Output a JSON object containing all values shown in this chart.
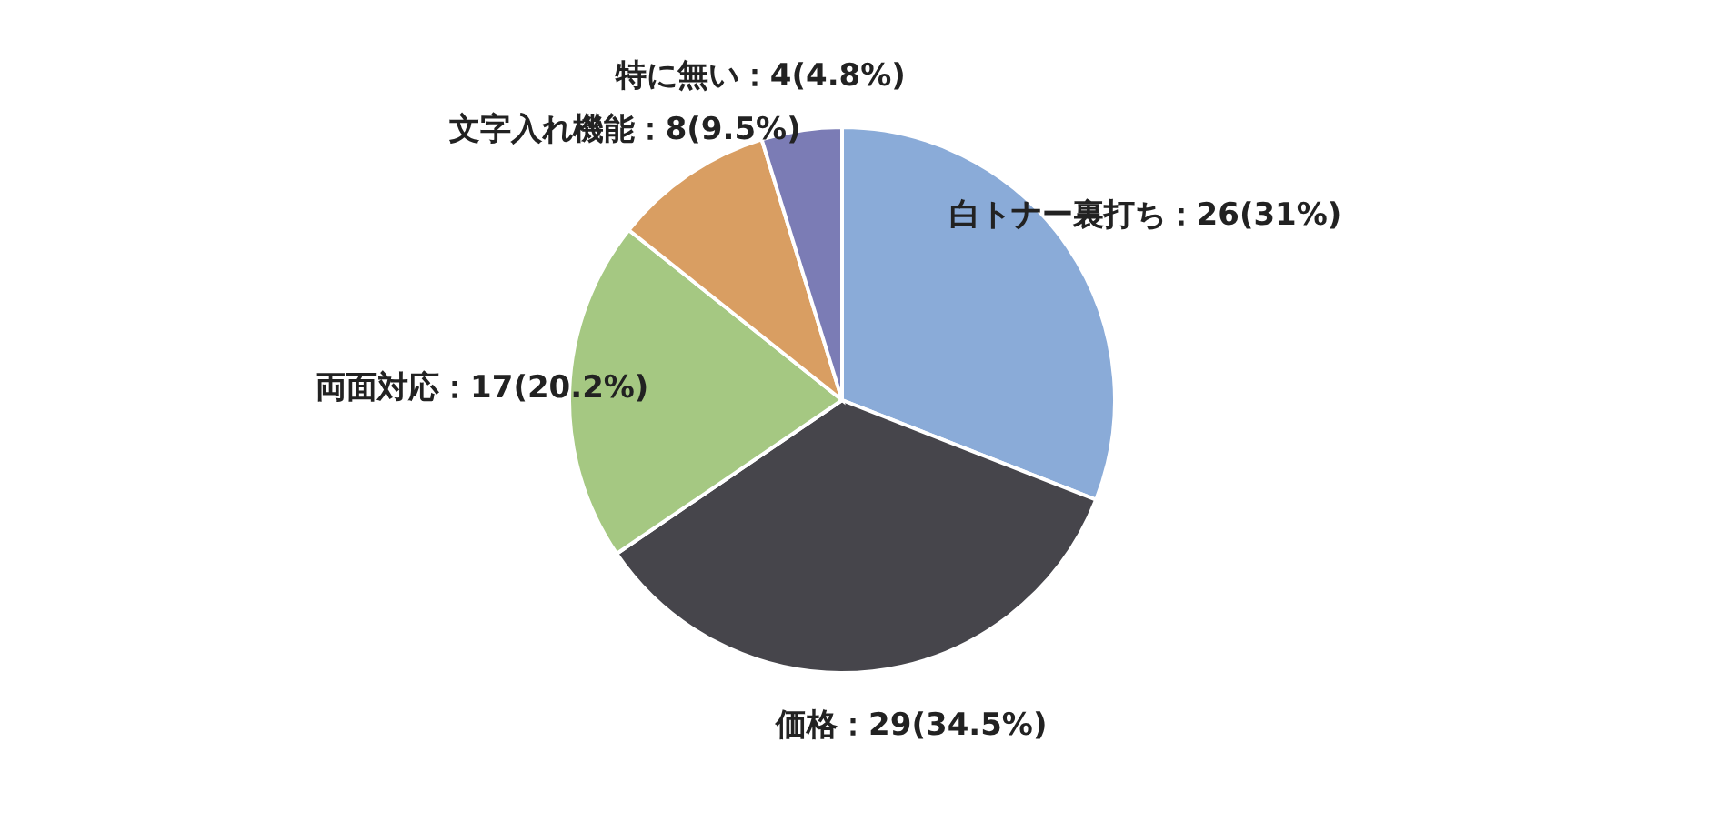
{
  "chart_data": {
    "type": "pie",
    "categories": [
      "白トナー裏打ち",
      "価格",
      "両面対応",
      "文字入れ機能",
      "特に無い"
    ],
    "values": [
      26,
      29,
      17,
      8,
      4
    ],
    "value_labels": [
      "26(31%)",
      "29(34.5%)",
      "17(20.2%)",
      "8(9.5%)",
      "4(4.8%)"
    ],
    "colors": [
      "#8aabd8",
      "#46454b",
      "#a5c882",
      "#d99e62",
      "#7b7cb5"
    ]
  }
}
